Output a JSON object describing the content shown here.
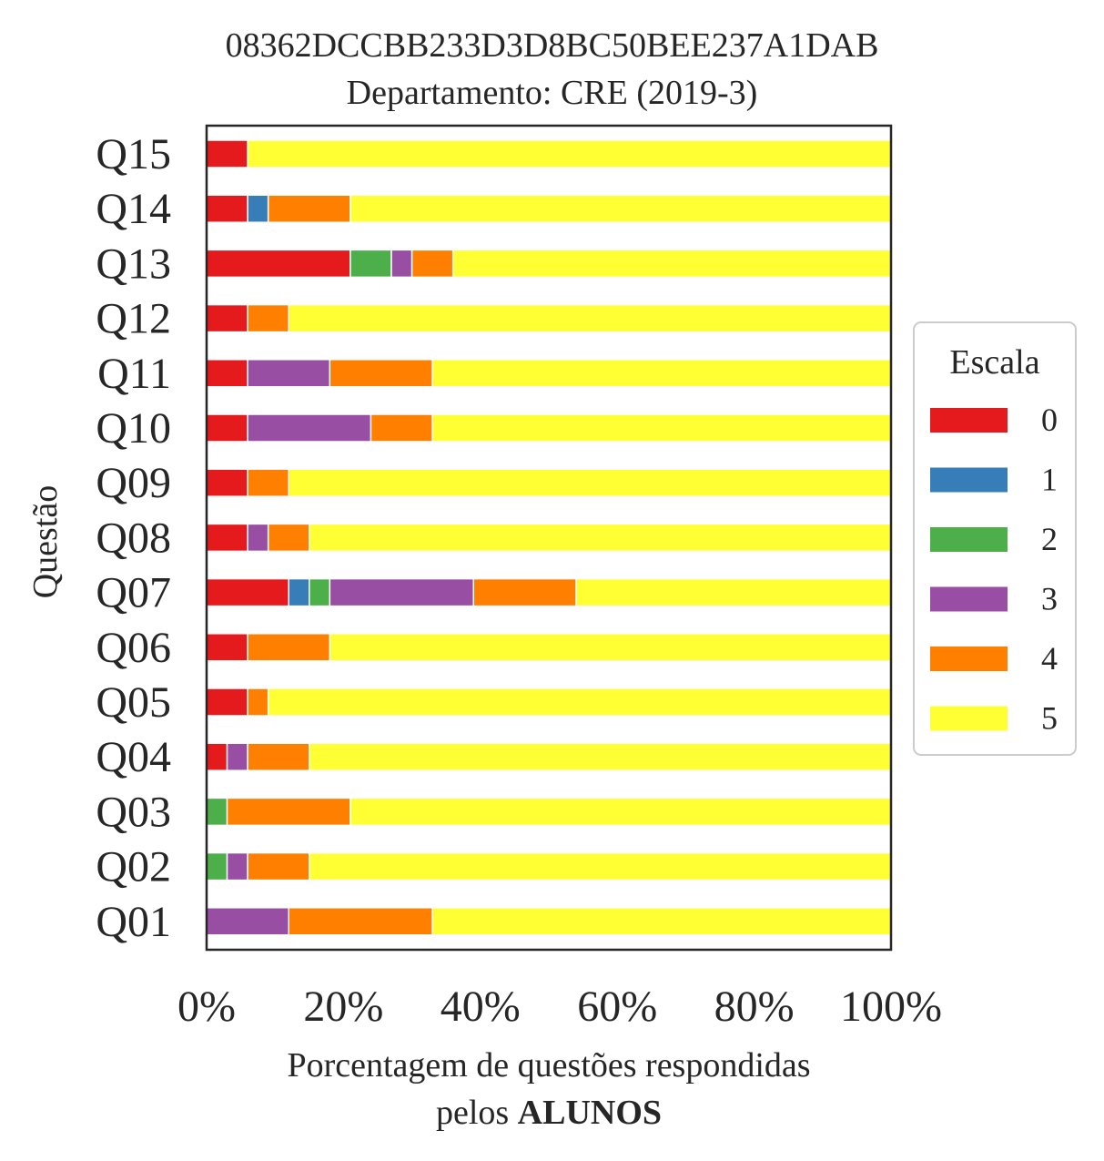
{
  "chart_data": {
    "type": "bar",
    "orientation": "horizontal",
    "stacked": true,
    "title": "08362DCCBB233D3D8BC50BEE237A1DAB",
    "subtitle": "Departamento: CRE (2019-3)",
    "xlabel_line1": "Porcentagem de questões respondidas",
    "xlabel_line2_prefix": "pelos ",
    "xlabel_line2_bold": "ALUNOS",
    "ylabel": "Questão",
    "xlim": [
      0,
      100
    ],
    "x_ticks": [
      "0%",
      "20%",
      "40%",
      "60%",
      "80%",
      "100%"
    ],
    "categories": [
      "Q01",
      "Q02",
      "Q03",
      "Q04",
      "Q05",
      "Q06",
      "Q07",
      "Q08",
      "Q09",
      "Q10",
      "Q11",
      "Q12",
      "Q13",
      "Q14",
      "Q15"
    ],
    "series": [
      {
        "name": "0",
        "color": "#e41a1c",
        "values": [
          0,
          0,
          0,
          3,
          6,
          6,
          12,
          6,
          6,
          6,
          6,
          6,
          21,
          6,
          6
        ]
      },
      {
        "name": "1",
        "color": "#377eb8",
        "values": [
          0,
          0,
          0,
          0,
          0,
          0,
          3,
          0,
          0,
          0,
          0,
          0,
          0,
          3,
          0
        ]
      },
      {
        "name": "2",
        "color": "#4daf4a",
        "values": [
          0,
          3,
          3,
          0,
          0,
          0,
          3,
          0,
          0,
          0,
          0,
          0,
          6,
          0,
          0
        ]
      },
      {
        "name": "3",
        "color": "#984ea3",
        "values": [
          12,
          3,
          0,
          3,
          0,
          0,
          21,
          3,
          0,
          18,
          12,
          0,
          3,
          0,
          0
        ]
      },
      {
        "name": "4",
        "color": "#ff7f00",
        "values": [
          21,
          9,
          18,
          9,
          3,
          12,
          15,
          6,
          6,
          9,
          15,
          6,
          6,
          12,
          0
        ]
      },
      {
        "name": "5",
        "color": "#ffff33",
        "values": [
          67,
          85,
          79,
          85,
          91,
          82,
          46,
          85,
          88,
          67,
          67,
          88,
          64,
          79,
          94
        ]
      }
    ],
    "legend": {
      "title": "Escala",
      "position": "center-right"
    },
    "grid": false
  }
}
